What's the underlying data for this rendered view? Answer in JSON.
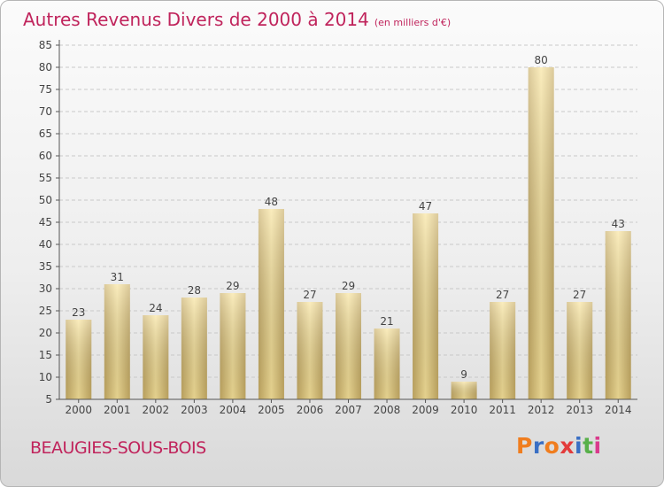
{
  "title": "Autres Revenus Divers de 2000 à 2014",
  "subtitle": "(en milliers d'€)",
  "place": "BEAUGIES-SOUS-BOIS",
  "logo": {
    "letters": [
      "P",
      "r",
      "o",
      "x",
      "i",
      "t",
      "i"
    ],
    "colors": [
      "#f07d1e",
      "#3a6fc4",
      "#f07d1e",
      "#e33b3b",
      "#3a6fc4",
      "#58b04a",
      "#d93a8c"
    ]
  },
  "colors": {
    "accent": "#c0245c",
    "bar_light": "#f8e39a",
    "bar_dark": "#c9ae66",
    "grid": "#c9c9c9"
  },
  "chart_data": {
    "type": "bar",
    "categories": [
      "2000",
      "2001",
      "2002",
      "2003",
      "2004",
      "2005",
      "2006",
      "2007",
      "2008",
      "2009",
      "2010",
      "2011",
      "2012",
      "2013",
      "2014"
    ],
    "values": [
      23,
      31,
      24,
      28,
      29,
      48,
      27,
      29,
      21,
      47,
      9,
      27,
      80,
      27,
      43
    ],
    "ylim": [
      5,
      85
    ],
    "yticks": [
      5,
      10,
      15,
      20,
      25,
      30,
      35,
      40,
      45,
      50,
      55,
      60,
      65,
      70,
      75,
      80,
      85
    ],
    "grid": true,
    "xlabel": "",
    "ylabel": ""
  }
}
